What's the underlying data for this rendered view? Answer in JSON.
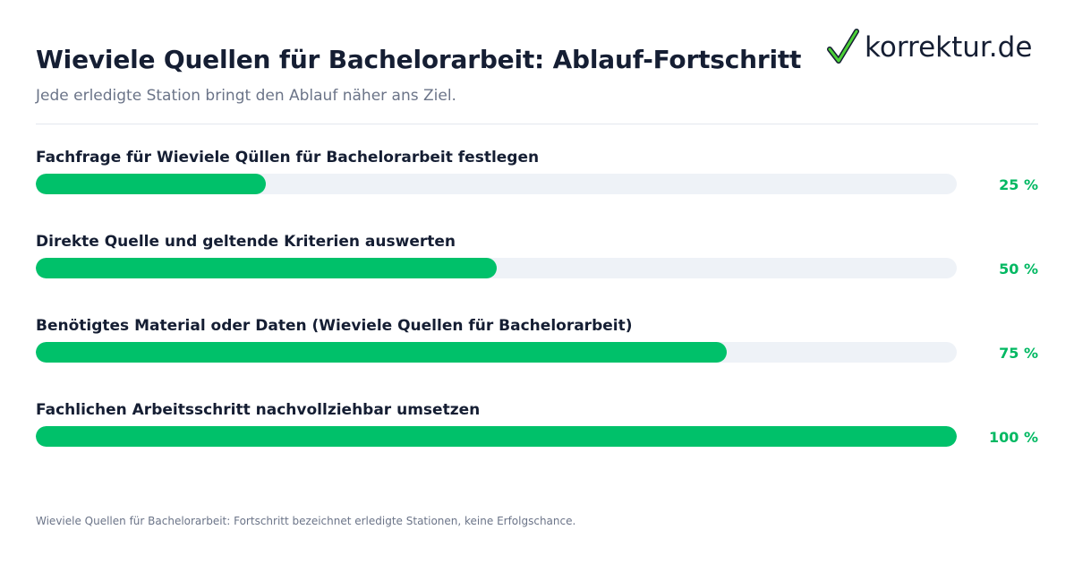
{
  "header": {
    "title": "Wieviele Quellen für Bachelorarbeit: Ablauf-Fortschritt",
    "subtitle": "Jede erledigte Station bringt den Ablauf näher ans Ziel."
  },
  "brand": {
    "logo_text": "korrektur.de",
    "logo_icon": "check-icon"
  },
  "colors": {
    "accent": "#00c16a",
    "track": "#eef2f7",
    "text": "#151e33",
    "muted": "#6b7488"
  },
  "chart_data": {
    "type": "bar",
    "orientation": "horizontal",
    "categories": [
      "Fachfrage für Wieviele Qüllen für Bachelorarbeit festlegen",
      "Direkte Quelle und geltende Kriterien auswerten",
      "Benötigtes Material oder Daten (Wieviele Quellen für Bachelorarbeit)",
      "Fachlichen Arbeitsschritt nachvollziehbar umsetzen"
    ],
    "values": [
      25,
      50,
      75,
      100
    ],
    "value_labels": [
      "25 %",
      "50 %",
      "75 %",
      "100 %"
    ],
    "xlim": [
      0,
      100
    ],
    "grid": false
  },
  "footnote": "Wieviele Quellen für Bachelorarbeit: Fortschritt bezeichnet erledigte Stationen, keine Erfolgschance."
}
